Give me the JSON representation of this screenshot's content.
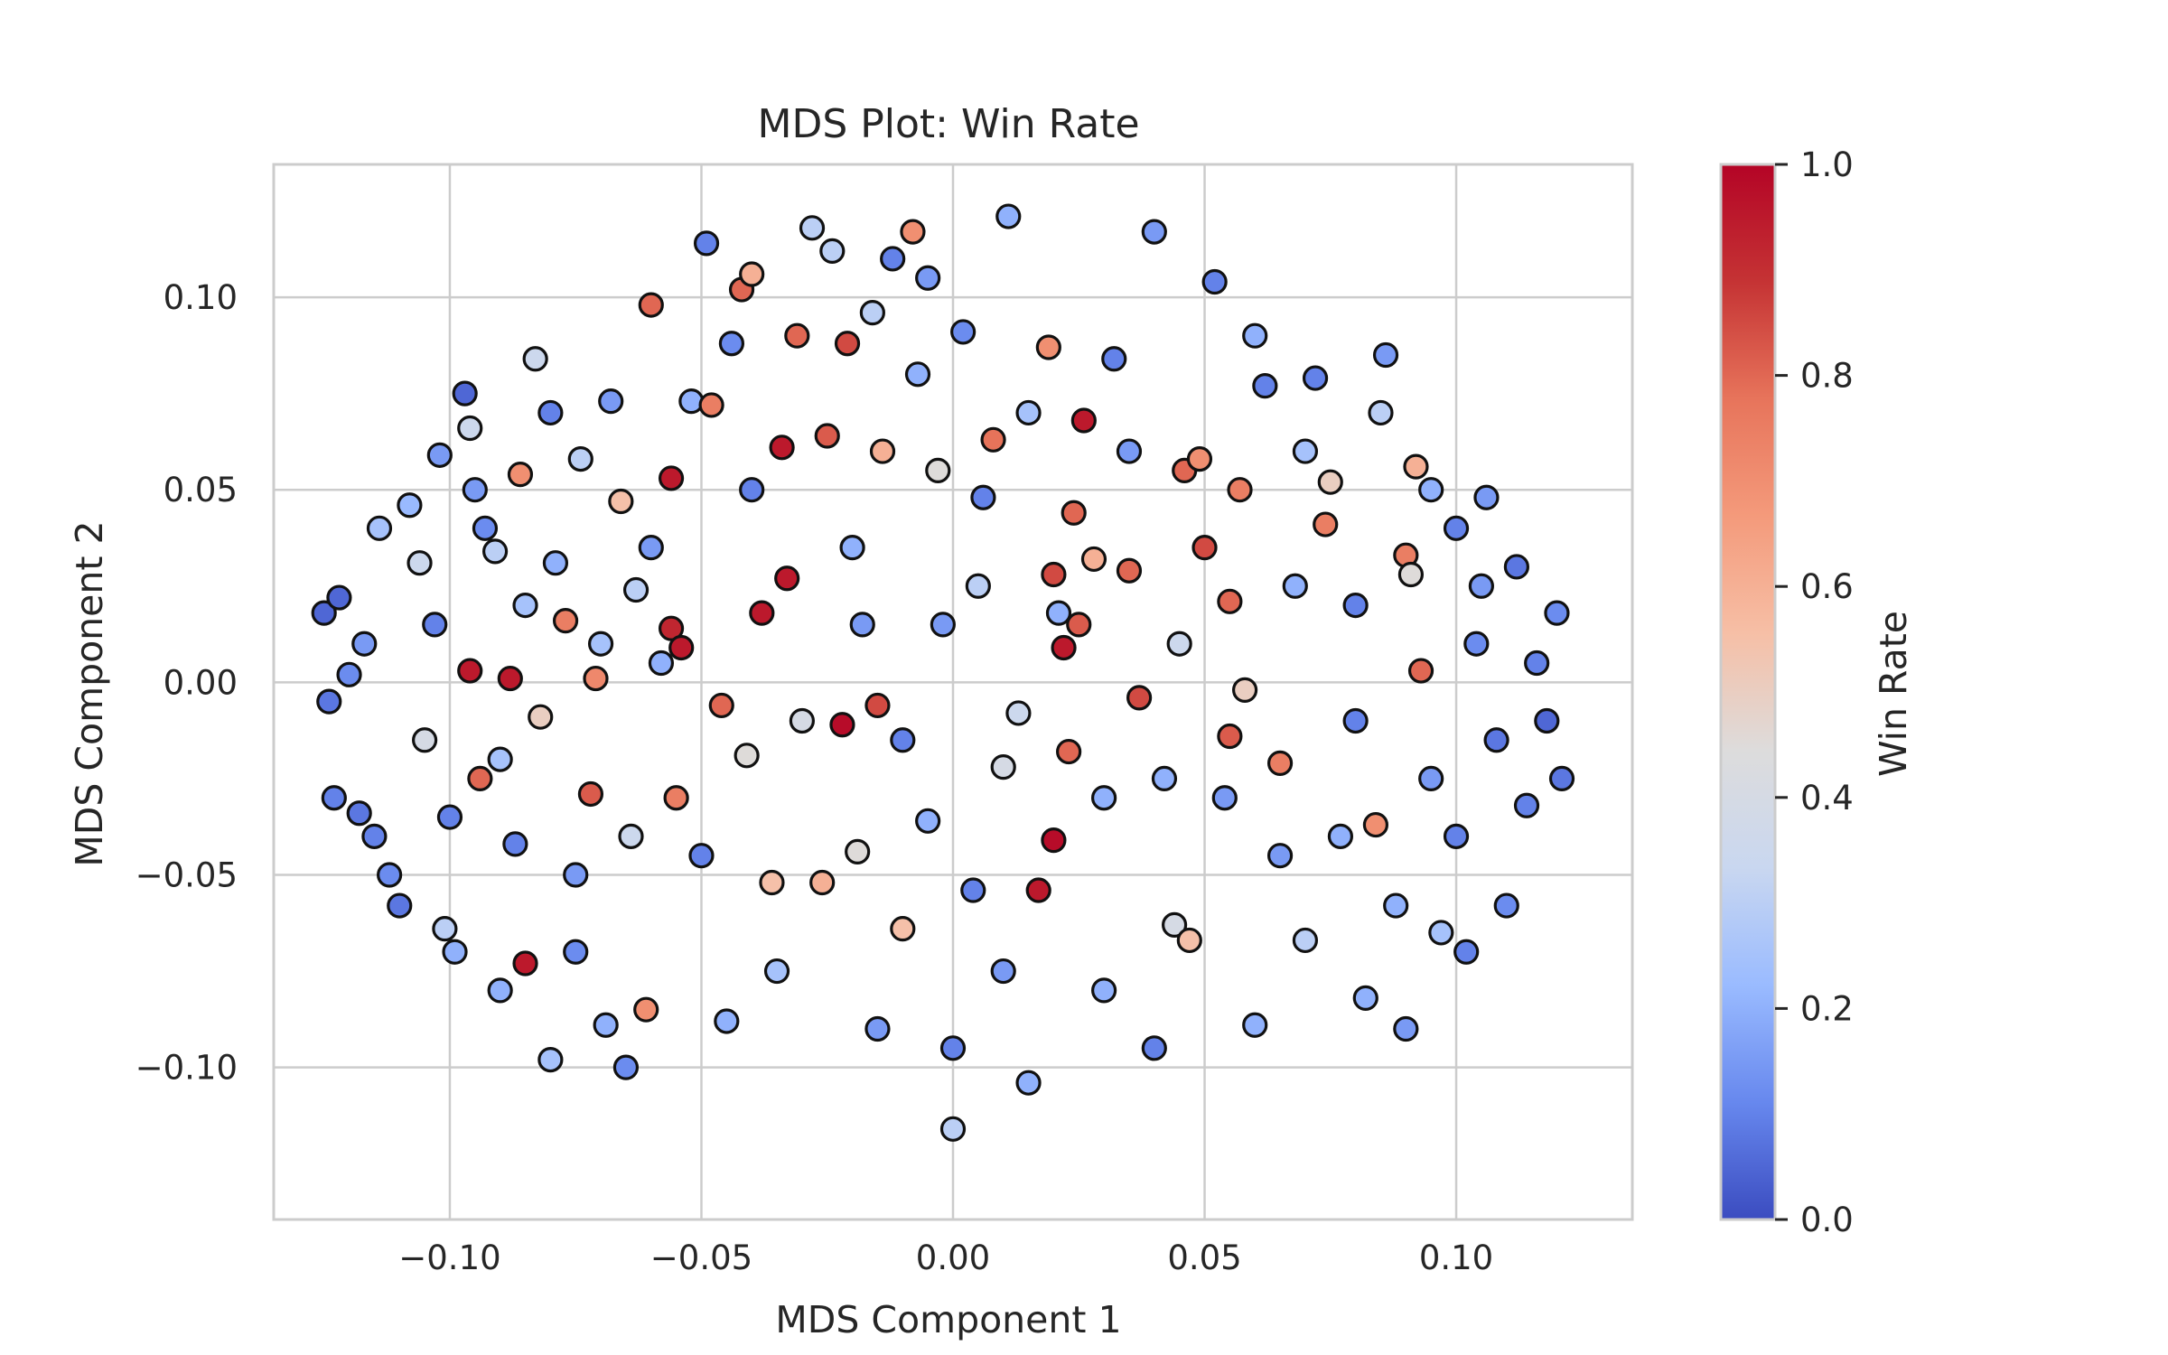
{
  "chart_data": {
    "type": "scatter",
    "title": "MDS Plot: Win Rate",
    "xlabel": "MDS Component 1",
    "ylabel": "MDS Component 2",
    "xlim": [
      -0.135,
      0.135
    ],
    "ylim": [
      -0.1395,
      0.1345
    ],
    "xticks": [
      -0.1,
      -0.05,
      0.0,
      0.05,
      0.1
    ],
    "xtick_labels": [
      "−0.10",
      "−0.05",
      "0.00",
      "0.05",
      "0.10"
    ],
    "yticks": [
      -0.1,
      -0.05,
      0.0,
      0.05,
      0.1
    ],
    "ytick_labels": [
      "−0.10",
      "−0.05",
      "0.00",
      "0.05",
      "0.10"
    ],
    "grid": true,
    "colormap": "coolwarm",
    "colormap_stops": [
      "#3b4cc0",
      "#6788ee",
      "#9abbff",
      "#c9d7f0",
      "#dddcdc",
      "#f6bfa6",
      "#f49a7b",
      "#e7745b",
      "#c53334",
      "#b40426"
    ],
    "colorbar": {
      "label": "Win Rate",
      "ticks": [
        0.0,
        0.2,
        0.4,
        0.6,
        0.8,
        1.0
      ],
      "tick_labels": [
        "0.0",
        "0.2",
        "0.4",
        "0.6",
        "0.8",
        "1.0"
      ],
      "range": [
        0.0,
        1.0
      ]
    },
    "marker_edge_color": "#111111",
    "points": [
      {
        "x": -0.125,
        "y": 0.018,
        "v": 0.05
      },
      {
        "x": -0.124,
        "y": -0.005,
        "v": 0.08
      },
      {
        "x": -0.123,
        "y": -0.03,
        "v": 0.1
      },
      {
        "x": -0.122,
        "y": 0.022,
        "v": 0.05
      },
      {
        "x": -0.12,
        "y": 0.002,
        "v": 0.12
      },
      {
        "x": -0.118,
        "y": -0.034,
        "v": 0.08
      },
      {
        "x": -0.117,
        "y": 0.01,
        "v": 0.15
      },
      {
        "x": -0.115,
        "y": -0.04,
        "v": 0.1
      },
      {
        "x": -0.114,
        "y": 0.04,
        "v": 0.25
      },
      {
        "x": -0.112,
        "y": -0.05,
        "v": 0.12
      },
      {
        "x": -0.11,
        "y": -0.058,
        "v": 0.08
      },
      {
        "x": -0.108,
        "y": 0.046,
        "v": 0.22
      },
      {
        "x": -0.106,
        "y": 0.031,
        "v": 0.35
      },
      {
        "x": -0.105,
        "y": -0.015,
        "v": 0.4
      },
      {
        "x": -0.103,
        "y": 0.015,
        "v": 0.1
      },
      {
        "x": -0.102,
        "y": 0.059,
        "v": 0.15
      },
      {
        "x": -0.101,
        "y": -0.064,
        "v": 0.3
      },
      {
        "x": -0.099,
        "y": -0.07,
        "v": 0.2
      },
      {
        "x": -0.097,
        "y": 0.075,
        "v": 0.05
      },
      {
        "x": -0.096,
        "y": 0.066,
        "v": 0.35
      },
      {
        "x": -0.096,
        "y": 0.003,
        "v": 0.95
      },
      {
        "x": -0.094,
        "y": -0.025,
        "v": 0.8
      },
      {
        "x": -0.093,
        "y": 0.04,
        "v": 0.12
      },
      {
        "x": -0.091,
        "y": 0.034,
        "v": 0.3
      },
      {
        "x": -0.09,
        "y": -0.02,
        "v": 0.25
      },
      {
        "x": -0.088,
        "y": 0.001,
        "v": 0.95
      },
      {
        "x": -0.087,
        "y": -0.042,
        "v": 0.1
      },
      {
        "x": -0.086,
        "y": 0.054,
        "v": 0.7
      },
      {
        "x": -0.085,
        "y": -0.073,
        "v": 0.95
      },
      {
        "x": -0.083,
        "y": 0.084,
        "v": 0.35
      },
      {
        "x": -0.082,
        "y": -0.009,
        "v": 0.5
      },
      {
        "x": -0.08,
        "y": -0.098,
        "v": 0.25
      },
      {
        "x": -0.079,
        "y": 0.031,
        "v": 0.2
      },
      {
        "x": -0.077,
        "y": 0.016,
        "v": 0.75
      },
      {
        "x": -0.075,
        "y": -0.07,
        "v": 0.12
      },
      {
        "x": -0.074,
        "y": 0.058,
        "v": 0.3
      },
      {
        "x": -0.072,
        "y": -0.029,
        "v": 0.82
      },
      {
        "x": -0.071,
        "y": 0.001,
        "v": 0.72
      },
      {
        "x": -0.069,
        "y": -0.089,
        "v": 0.2
      },
      {
        "x": -0.068,
        "y": 0.073,
        "v": 0.15
      },
      {
        "x": -0.066,
        "y": 0.047,
        "v": 0.55
      },
      {
        "x": -0.064,
        "y": -0.04,
        "v": 0.35
      },
      {
        "x": -0.063,
        "y": 0.024,
        "v": 0.3
      },
      {
        "x": -0.061,
        "y": -0.085,
        "v": 0.7
      },
      {
        "x": -0.06,
        "y": 0.098,
        "v": 0.8
      },
      {
        "x": -0.058,
        "y": 0.005,
        "v": 0.2
      },
      {
        "x": -0.056,
        "y": 0.053,
        "v": 0.95
      },
      {
        "x": -0.056,
        "y": 0.014,
        "v": 0.92
      },
      {
        "x": -0.055,
        "y": -0.03,
        "v": 0.75
      },
      {
        "x": -0.054,
        "y": 0.009,
        "v": 0.95
      },
      {
        "x": -0.052,
        "y": 0.073,
        "v": 0.2
      },
      {
        "x": -0.05,
        "y": -0.045,
        "v": 0.1
      },
      {
        "x": -0.049,
        "y": 0.114,
        "v": 0.1
      },
      {
        "x": -0.048,
        "y": 0.072,
        "v": 0.75
      },
      {
        "x": -0.046,
        "y": -0.006,
        "v": 0.8
      },
      {
        "x": -0.044,
        "y": 0.088,
        "v": 0.12
      },
      {
        "x": -0.042,
        "y": 0.102,
        "v": 0.8
      },
      {
        "x": -0.041,
        "y": -0.019,
        "v": 0.45
      },
      {
        "x": -0.04,
        "y": 0.106,
        "v": 0.6
      },
      {
        "x": -0.038,
        "y": 0.018,
        "v": 0.95
      },
      {
        "x": -0.036,
        "y": -0.052,
        "v": 0.55
      },
      {
        "x": -0.034,
        "y": 0.061,
        "v": 0.95
      },
      {
        "x": -0.033,
        "y": 0.027,
        "v": 0.95
      },
      {
        "x": -0.031,
        "y": 0.09,
        "v": 0.8
      },
      {
        "x": -0.03,
        "y": -0.01,
        "v": 0.4
      },
      {
        "x": -0.028,
        "y": 0.118,
        "v": 0.3
      },
      {
        "x": -0.026,
        "y": -0.052,
        "v": 0.6
      },
      {
        "x": -0.025,
        "y": 0.064,
        "v": 0.82
      },
      {
        "x": -0.024,
        "y": 0.112,
        "v": 0.3
      },
      {
        "x": -0.022,
        "y": -0.011,
        "v": 0.98
      },
      {
        "x": -0.021,
        "y": 0.088,
        "v": 0.85
      },
      {
        "x": -0.019,
        "y": -0.044,
        "v": 0.45
      },
      {
        "x": -0.018,
        "y": 0.015,
        "v": 0.15
      },
      {
        "x": -0.016,
        "y": 0.096,
        "v": 0.3
      },
      {
        "x": -0.015,
        "y": -0.006,
        "v": 0.85
      },
      {
        "x": -0.014,
        "y": 0.06,
        "v": 0.6
      },
      {
        "x": -0.012,
        "y": 0.11,
        "v": 0.1
      },
      {
        "x": -0.01,
        "y": -0.064,
        "v": 0.55
      },
      {
        "x": -0.008,
        "y": 0.117,
        "v": 0.7
      },
      {
        "x": -0.007,
        "y": 0.08,
        "v": 0.2
      },
      {
        "x": -0.005,
        "y": -0.036,
        "v": 0.2
      },
      {
        "x": -0.003,
        "y": 0.055,
        "v": 0.45
      },
      {
        "x": -0.002,
        "y": 0.015,
        "v": 0.15
      },
      {
        "x": 0.0,
        "y": -0.116,
        "v": 0.3
      },
      {
        "x": 0.002,
        "y": 0.091,
        "v": 0.12
      },
      {
        "x": 0.004,
        "y": -0.054,
        "v": 0.1
      },
      {
        "x": 0.006,
        "y": 0.048,
        "v": 0.1
      },
      {
        "x": 0.008,
        "y": 0.063,
        "v": 0.78
      },
      {
        "x": 0.01,
        "y": -0.022,
        "v": 0.4
      },
      {
        "x": 0.011,
        "y": 0.121,
        "v": 0.2
      },
      {
        "x": 0.013,
        "y": -0.008,
        "v": 0.35
      },
      {
        "x": 0.015,
        "y": -0.104,
        "v": 0.2
      },
      {
        "x": 0.017,
        "y": -0.054,
        "v": 0.95
      },
      {
        "x": 0.019,
        "y": 0.087,
        "v": 0.7
      },
      {
        "x": 0.02,
        "y": 0.028,
        "v": 0.85
      },
      {
        "x": 0.021,
        "y": 0.018,
        "v": 0.2
      },
      {
        "x": 0.022,
        "y": 0.009,
        "v": 0.95
      },
      {
        "x": 0.023,
        "y": -0.018,
        "v": 0.8
      },
      {
        "x": 0.024,
        "y": 0.044,
        "v": 0.8
      },
      {
        "x": 0.025,
        "y": 0.015,
        "v": 0.82
      },
      {
        "x": 0.026,
        "y": 0.068,
        "v": 0.95
      },
      {
        "x": 0.02,
        "y": -0.041,
        "v": 0.98
      },
      {
        "x": 0.028,
        "y": 0.032,
        "v": 0.6
      },
      {
        "x": 0.03,
        "y": -0.08,
        "v": 0.2
      },
      {
        "x": 0.032,
        "y": 0.084,
        "v": 0.1
      },
      {
        "x": 0.035,
        "y": 0.029,
        "v": 0.8
      },
      {
        "x": 0.037,
        "y": -0.004,
        "v": 0.85
      },
      {
        "x": 0.04,
        "y": 0.117,
        "v": 0.15
      },
      {
        "x": 0.042,
        "y": -0.025,
        "v": 0.2
      },
      {
        "x": 0.044,
        "y": -0.063,
        "v": 0.4
      },
      {
        "x": 0.046,
        "y": 0.055,
        "v": 0.8
      },
      {
        "x": 0.047,
        "y": -0.067,
        "v": 0.55
      },
      {
        "x": 0.049,
        "y": 0.058,
        "v": 0.7
      },
      {
        "x": 0.05,
        "y": 0.035,
        "v": 0.85
      },
      {
        "x": 0.052,
        "y": 0.104,
        "v": 0.1
      },
      {
        "x": 0.054,
        "y": -0.03,
        "v": 0.15
      },
      {
        "x": 0.055,
        "y": -0.014,
        "v": 0.82
      },
      {
        "x": 0.055,
        "y": 0.021,
        "v": 0.8
      },
      {
        "x": 0.057,
        "y": 0.05,
        "v": 0.75
      },
      {
        "x": 0.058,
        "y": -0.002,
        "v": 0.5
      },
      {
        "x": 0.06,
        "y": -0.089,
        "v": 0.2
      },
      {
        "x": 0.062,
        "y": 0.077,
        "v": 0.1
      },
      {
        "x": 0.065,
        "y": -0.021,
        "v": 0.75
      },
      {
        "x": 0.068,
        "y": 0.025,
        "v": 0.2
      },
      {
        "x": 0.07,
        "y": -0.067,
        "v": 0.3
      },
      {
        "x": 0.072,
        "y": 0.079,
        "v": 0.1
      },
      {
        "x": 0.074,
        "y": 0.041,
        "v": 0.75
      },
      {
        "x": 0.075,
        "y": 0.052,
        "v": 0.5
      },
      {
        "x": 0.077,
        "y": -0.04,
        "v": 0.2
      },
      {
        "x": 0.08,
        "y": 0.02,
        "v": 0.1
      },
      {
        "x": 0.082,
        "y": -0.082,
        "v": 0.2
      },
      {
        "x": 0.084,
        "y": -0.037,
        "v": 0.7
      },
      {
        "x": 0.086,
        "y": 0.085,
        "v": 0.15
      },
      {
        "x": 0.088,
        "y": -0.058,
        "v": 0.2
      },
      {
        "x": 0.09,
        "y": 0.033,
        "v": 0.75
      },
      {
        "x": 0.091,
        "y": 0.028,
        "v": 0.45
      },
      {
        "x": 0.092,
        "y": 0.056,
        "v": 0.6
      },
      {
        "x": 0.093,
        "y": 0.003,
        "v": 0.8
      },
      {
        "x": 0.095,
        "y": -0.025,
        "v": 0.15
      },
      {
        "x": 0.097,
        "y": -0.065,
        "v": 0.25
      },
      {
        "x": 0.1,
        "y": 0.04,
        "v": 0.1
      },
      {
        "x": 0.102,
        "y": -0.07,
        "v": 0.1
      },
      {
        "x": 0.104,
        "y": 0.01,
        "v": 0.12
      },
      {
        "x": 0.106,
        "y": 0.048,
        "v": 0.15
      },
      {
        "x": 0.108,
        "y": -0.015,
        "v": 0.08
      },
      {
        "x": 0.11,
        "y": -0.058,
        "v": 0.12
      },
      {
        "x": 0.112,
        "y": 0.03,
        "v": 0.08
      },
      {
        "x": 0.114,
        "y": -0.032,
        "v": 0.1
      },
      {
        "x": 0.116,
        "y": 0.005,
        "v": 0.1
      },
      {
        "x": 0.118,
        "y": -0.01,
        "v": 0.05
      },
      {
        "x": 0.12,
        "y": 0.018,
        "v": 0.12
      },
      {
        "x": 0.121,
        "y": -0.025,
        "v": 0.08
      },
      {
        "x": -0.08,
        "y": 0.07,
        "v": 0.1
      },
      {
        "x": -0.075,
        "y": -0.05,
        "v": 0.15
      },
      {
        "x": -0.07,
        "y": 0.01,
        "v": 0.25
      },
      {
        "x": -0.065,
        "y": -0.1,
        "v": 0.12
      },
      {
        "x": -0.06,
        "y": 0.035,
        "v": 0.15
      },
      {
        "x": -0.045,
        "y": -0.088,
        "v": 0.2
      },
      {
        "x": -0.04,
        "y": 0.05,
        "v": 0.1
      },
      {
        "x": -0.035,
        "y": -0.075,
        "v": 0.25
      },
      {
        "x": -0.02,
        "y": 0.035,
        "v": 0.2
      },
      {
        "x": -0.015,
        "y": -0.09,
        "v": 0.15
      },
      {
        "x": -0.01,
        "y": -0.015,
        "v": 0.1
      },
      {
        "x": 0.005,
        "y": 0.025,
        "v": 0.3
      },
      {
        "x": 0.01,
        "y": -0.075,
        "v": 0.15
      },
      {
        "x": 0.015,
        "y": 0.07,
        "v": 0.25
      },
      {
        "x": 0.03,
        "y": -0.03,
        "v": 0.2
      },
      {
        "x": 0.035,
        "y": 0.06,
        "v": 0.15
      },
      {
        "x": 0.04,
        "y": -0.095,
        "v": 0.1
      },
      {
        "x": 0.045,
        "y": 0.01,
        "v": 0.35
      },
      {
        "x": 0.06,
        "y": 0.09,
        "v": 0.2
      },
      {
        "x": 0.065,
        "y": -0.045,
        "v": 0.15
      },
      {
        "x": 0.07,
        "y": 0.06,
        "v": 0.25
      },
      {
        "x": 0.08,
        "y": -0.01,
        "v": 0.1
      },
      {
        "x": 0.085,
        "y": 0.07,
        "v": 0.3
      },
      {
        "x": 0.09,
        "y": -0.09,
        "v": 0.15
      },
      {
        "x": -0.09,
        "y": -0.08,
        "v": 0.2
      },
      {
        "x": -0.095,
        "y": 0.05,
        "v": 0.15
      },
      {
        "x": -0.1,
        "y": -0.035,
        "v": 0.1
      },
      {
        "x": -0.085,
        "y": 0.02,
        "v": 0.25
      },
      {
        "x": 0.095,
        "y": 0.05,
        "v": 0.2
      },
      {
        "x": 0.1,
        "y": -0.04,
        "v": 0.1
      },
      {
        "x": 0.105,
        "y": 0.025,
        "v": 0.15
      },
      {
        "x": -0.005,
        "y": 0.105,
        "v": 0.15
      },
      {
        "x": 0.0,
        "y": -0.095,
        "v": 0.1
      }
    ]
  }
}
